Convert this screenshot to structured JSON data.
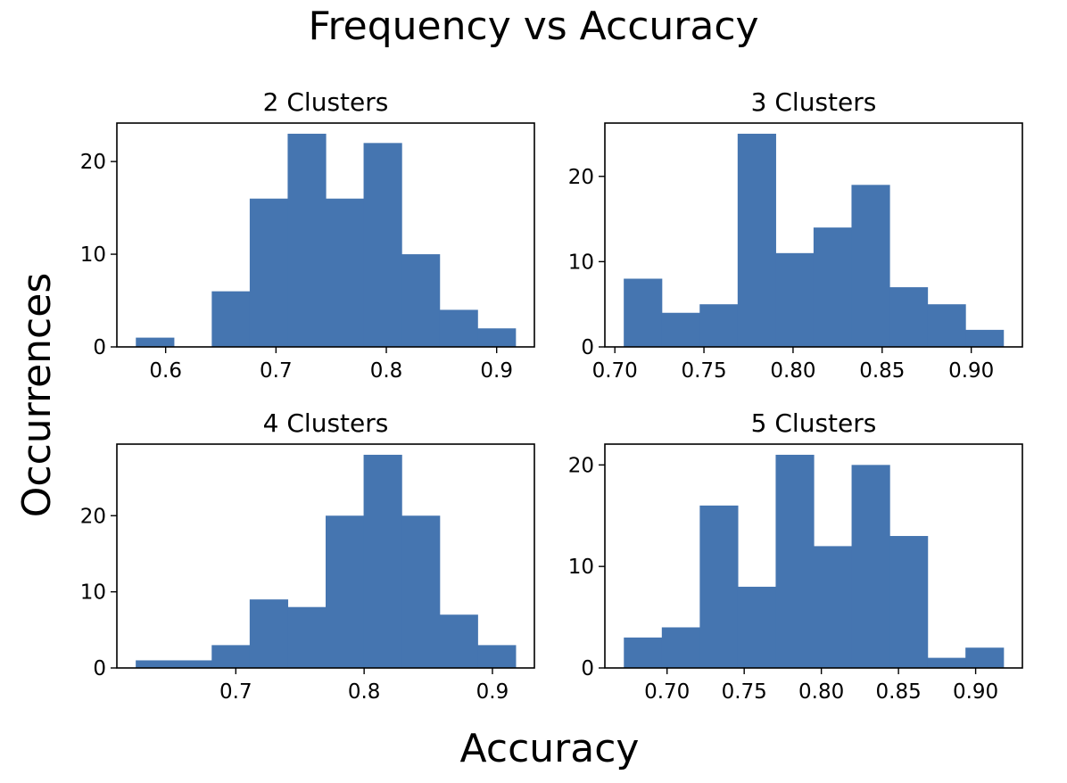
{
  "figure": {
    "title": "Frequency vs Accuracy",
    "xlabel": "Accuracy",
    "ylabel": "Occurrences"
  },
  "colors": {
    "bar": "#4575b0",
    "axes": "#000000",
    "background": "#ffffff"
  },
  "chart_data": [
    {
      "type": "bar",
      "title": "2 Clusters",
      "bin_edges": [
        0.573,
        0.6074,
        0.6418,
        0.6762,
        0.7106,
        0.745,
        0.7794,
        0.8138,
        0.8482,
        0.8826,
        0.917
      ],
      "values": [
        1,
        0,
        6,
        16,
        23,
        16,
        22,
        10,
        4,
        2
      ],
      "xlim": [
        0.5558,
        0.9342
      ],
      "ylim": [
        0,
        24.15
      ],
      "xticks": [
        0.6,
        0.7,
        0.8,
        0.9
      ],
      "xtick_labels": [
        "0.6",
        "0.7",
        "0.8",
        "0.9"
      ],
      "yticks": [
        0,
        10,
        20
      ],
      "ytick_labels": [
        "0",
        "10",
        "20"
      ],
      "grid": false
    },
    {
      "type": "bar",
      "title": "3 Clusters",
      "bin_edges": [
        0.705,
        0.7263,
        0.7476,
        0.7689,
        0.7902,
        0.8115,
        0.8328,
        0.8541,
        0.8754,
        0.8967,
        0.918
      ],
      "values": [
        8,
        4,
        5,
        25,
        11,
        14,
        19,
        7,
        5,
        2
      ],
      "xlim": [
        0.6944,
        0.9287
      ],
      "ylim": [
        0,
        26.25
      ],
      "xticks": [
        0.7,
        0.75,
        0.8,
        0.85,
        0.9
      ],
      "xtick_labels": [
        "0.70",
        "0.75",
        "0.80",
        "0.85",
        "0.90"
      ],
      "yticks": [
        0,
        10,
        20
      ],
      "ytick_labels": [
        "0",
        "10",
        "20"
      ],
      "grid": false
    },
    {
      "type": "bar",
      "title": "4 Clusters",
      "bin_edges": [
        0.622,
        0.6516,
        0.6812,
        0.7108,
        0.7404,
        0.77,
        0.7996,
        0.8292,
        0.8588,
        0.8884,
        0.918
      ],
      "values": [
        1,
        1,
        3,
        9,
        8,
        20,
        28,
        20,
        7,
        3
      ],
      "xlim": [
        0.6073,
        0.9327
      ],
      "ylim": [
        0,
        29.4
      ],
      "xticks": [
        0.7,
        0.8,
        0.9
      ],
      "xtick_labels": [
        "0.7",
        "0.8",
        "0.9"
      ],
      "yticks": [
        0,
        10,
        20
      ],
      "ytick_labels": [
        "0",
        "10",
        "20"
      ],
      "grid": false
    },
    {
      "type": "bar",
      "title": "5 Clusters",
      "bin_edges": [
        0.672,
        0.6966,
        0.7212,
        0.7458,
        0.7704,
        0.795,
        0.8196,
        0.8442,
        0.8688,
        0.8934,
        0.918
      ],
      "values": [
        3,
        4,
        16,
        8,
        21,
        12,
        20,
        13,
        1,
        2
      ],
      "xlim": [
        0.6597,
        0.9303
      ],
      "ylim": [
        0,
        22.05
      ],
      "xticks": [
        0.7,
        0.75,
        0.8,
        0.85,
        0.9
      ],
      "xtick_labels": [
        "0.70",
        "0.75",
        "0.80",
        "0.85",
        "0.90"
      ],
      "yticks": [
        0,
        10,
        20
      ],
      "ytick_labels": [
        "0",
        "10",
        "20"
      ],
      "grid": false
    }
  ]
}
